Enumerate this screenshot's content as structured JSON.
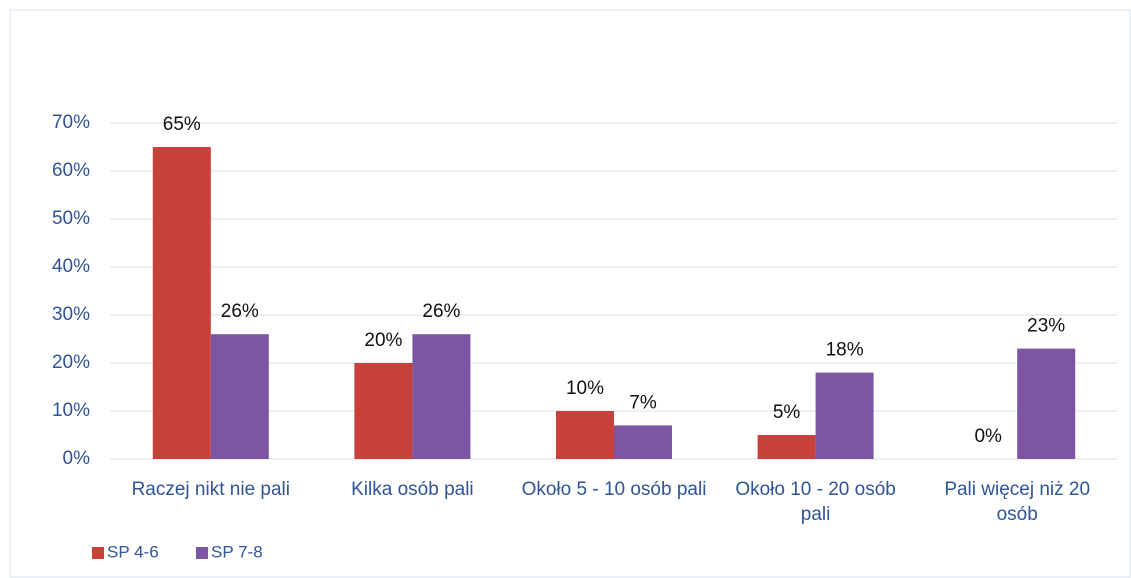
{
  "chart_data": {
    "type": "bar",
    "categories": [
      "Raczej nikt nie pali",
      "Kilka osób pali",
      "Około 5 - 10 osób pali",
      "Około 10 - 20 osób pali",
      "Pali więcej niż 20 osób"
    ],
    "series": [
      {
        "name": "SP 4-6",
        "color": "#c8403a",
        "values": [
          65,
          20,
          10,
          5,
          0
        ],
        "value_labels": [
          "65%",
          "20%",
          "10%",
          "5%",
          "0%"
        ]
      },
      {
        "name": "SP 7-8",
        "color": "#7d55a3",
        "values": [
          26,
          26,
          7,
          18,
          23
        ],
        "value_labels": [
          "26%",
          "26%",
          "7%",
          "18%",
          "23%"
        ]
      }
    ],
    "ylim": [
      0,
      70
    ],
    "yticks": [
      {
        "value": 0,
        "label": "0%"
      },
      {
        "value": 10,
        "label": "10%"
      },
      {
        "value": 20,
        "label": "20%"
      },
      {
        "value": 30,
        "label": "30%"
      },
      {
        "value": 40,
        "label": "40%"
      },
      {
        "value": 50,
        "label": "50%"
      },
      {
        "value": 60,
        "label": "60%"
      },
      {
        "value": 70,
        "label": "70%"
      }
    ],
    "grid": true,
    "legend": "bottom-left"
  }
}
